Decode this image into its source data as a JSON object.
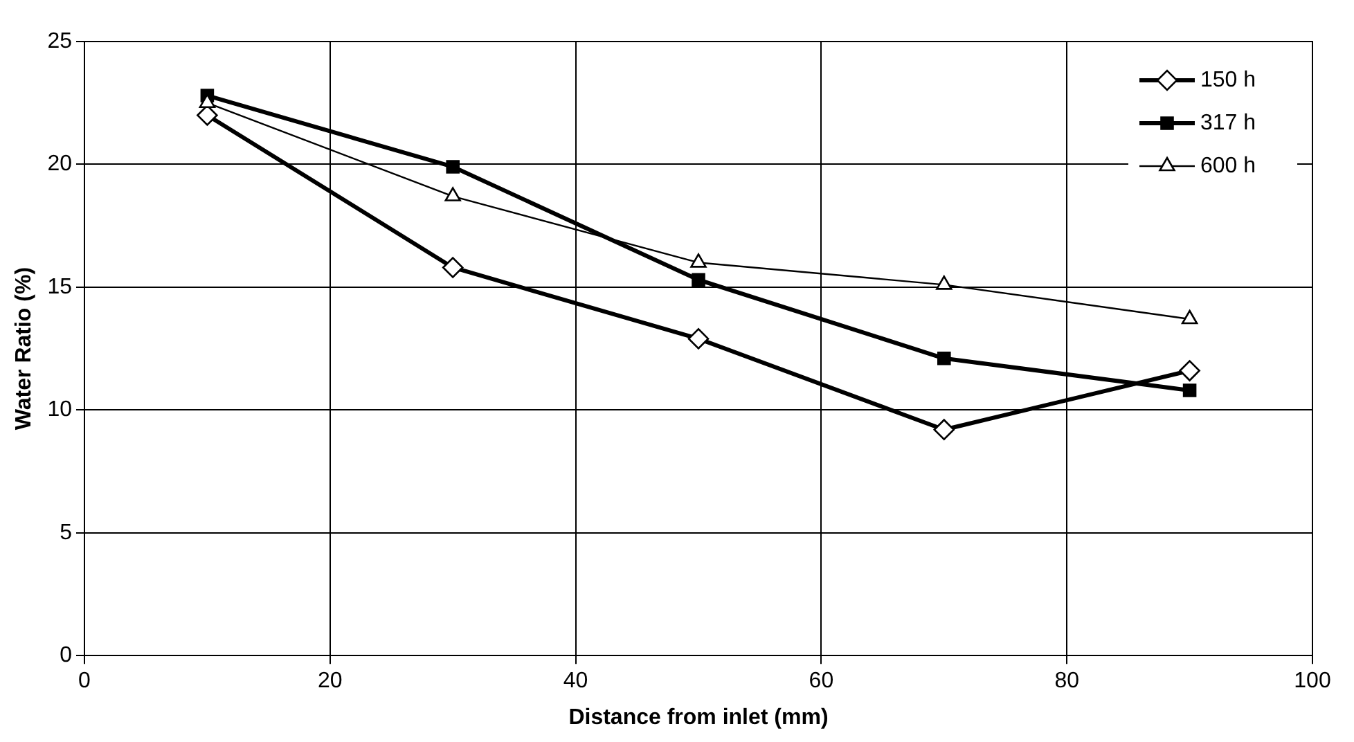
{
  "chart_data": {
    "type": "line",
    "xlabel": "Distance from inlet (mm)",
    "ylabel": "Water Ratio (%)",
    "x": [
      10,
      30,
      50,
      70,
      90
    ],
    "series": [
      {
        "name": "150 h",
        "color": "#000000",
        "values": [
          22.0,
          15.8,
          12.9,
          9.2,
          11.6
        ],
        "marker": "diamond"
      },
      {
        "name": "317 h",
        "color": "#000000",
        "values": [
          22.8,
          19.9,
          15.3,
          12.1,
          10.8
        ],
        "marker": "square"
      },
      {
        "name": "600 h",
        "color": "#000000",
        "values": [
          22.5,
          18.7,
          16.0,
          15.1,
          13.7
        ],
        "marker": "triangle"
      }
    ],
    "xlim": [
      0,
      100
    ],
    "xticks": [
      0,
      20,
      40,
      60,
      80,
      100
    ],
    "ylim": [
      0,
      25
    ],
    "yticks": [
      0,
      5,
      10,
      15,
      20,
      25
    ],
    "grid": true,
    "legend": "top right",
    "line_style": "solid"
  }
}
